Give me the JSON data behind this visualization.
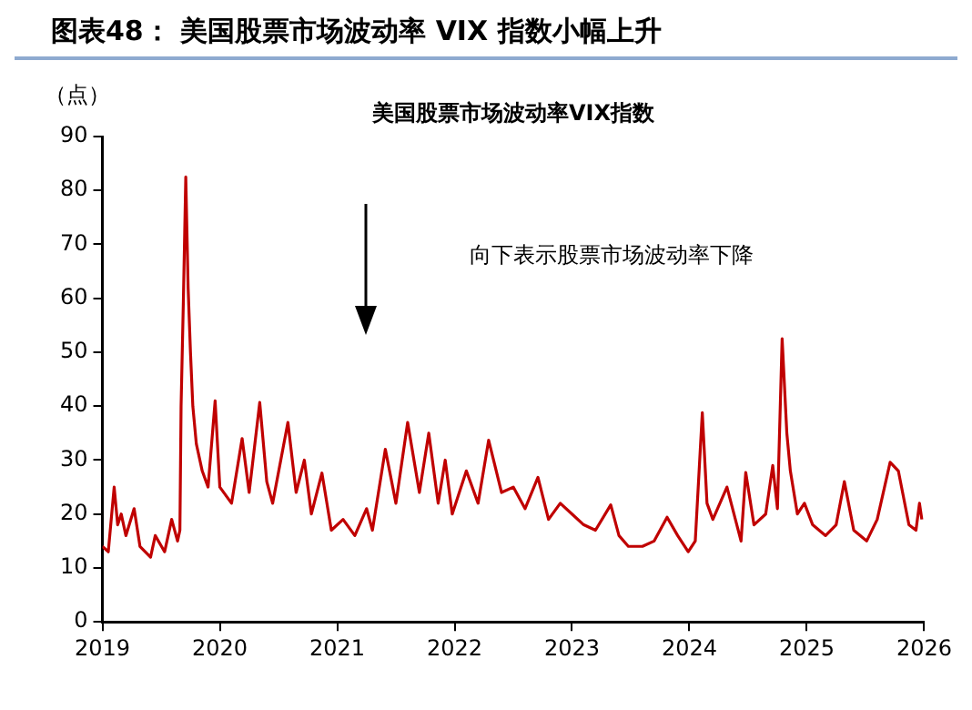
{
  "chart_data": {
    "type": "line",
    "title": "图表48：  美国股票市场波动率 VIX 指数小幅上升",
    "subtitle": "美国股票市场波动率VIX指数",
    "ylabel": "（点）",
    "annotations": [
      "向下表示股票市场波动率下降"
    ],
    "x": [
      2019.0,
      2019.05,
      2019.1,
      2019.13,
      2019.16,
      2019.2,
      2019.27,
      2019.32,
      2019.41,
      2019.45,
      2019.53,
      2019.59,
      2019.64,
      2019.66,
      2019.67,
      2019.69,
      2019.71,
      2019.73,
      2019.75,
      2019.77,
      2019.8,
      2019.85,
      2019.9,
      2019.96,
      2020.0,
      2020.1,
      2020.19,
      2020.25,
      2020.34,
      2020.4,
      2020.45,
      2020.58,
      2020.65,
      2020.72,
      2020.78,
      2020.87,
      2020.95,
      2021.05,
      2021.15,
      2021.25,
      2021.3,
      2021.41,
      2021.5,
      2021.6,
      2021.7,
      2021.78,
      2021.86,
      2021.92,
      2021.98,
      2022.1,
      2022.2,
      2022.29,
      2022.4,
      2022.5,
      2022.6,
      2022.71,
      2022.8,
      2022.9,
      2023.0,
      2023.1,
      2023.2,
      2023.33,
      2023.4,
      2023.48,
      2023.6,
      2023.7,
      2023.81,
      2023.9,
      2023.99,
      2024.05,
      2024.11,
      2024.15,
      2024.2,
      2024.32,
      2024.44,
      2024.48,
      2024.55,
      2024.65,
      2024.71,
      2024.75,
      2024.79,
      2024.83,
      2024.86,
      2024.92,
      2024.98,
      2025.05,
      2025.16,
      2025.25,
      2025.32,
      2025.4,
      2025.51,
      2025.6,
      2025.71,
      2025.78,
      2025.87,
      2025.93,
      2025.96,
      2025.98
    ],
    "values": [
      14,
      13,
      25,
      18,
      20,
      16,
      21,
      14,
      12,
      16,
      13,
      19,
      15,
      17,
      40,
      60,
      82.5,
      62,
      50,
      40,
      33,
      28,
      25,
      41,
      25,
      22,
      34,
      24,
      40.7,
      26,
      22,
      37,
      24,
      30,
      20,
      27.6,
      17,
      19,
      16,
      21,
      17,
      32,
      22,
      37,
      24,
      35,
      22,
      30,
      20,
      28,
      22,
      33.7,
      24,
      25,
      21,
      26.8,
      19,
      22,
      20,
      18,
      17,
      21.7,
      16,
      14,
      14,
      15,
      19.4,
      16,
      13,
      15,
      38.8,
      22,
      19,
      25,
      15,
      27.7,
      18,
      20,
      29,
      21,
      52.5,
      35,
      28,
      20,
      22,
      18,
      16,
      18,
      26,
      17,
      15,
      19,
      29.6,
      28,
      18,
      17,
      22,
      19
    ],
    "color": "#c00000",
    "xlim": [
      2019,
      2026
    ],
    "xticks": [
      2019,
      2020,
      2021,
      2022,
      2023,
      2024,
      2025,
      2026
    ],
    "ylim": [
      0,
      90
    ],
    "yticks": [
      0,
      10,
      20,
      30,
      40,
      50,
      60,
      70,
      80,
      90
    ],
    "grid": false,
    "legend": false,
    "marker": "none",
    "line_style": "solid"
  }
}
